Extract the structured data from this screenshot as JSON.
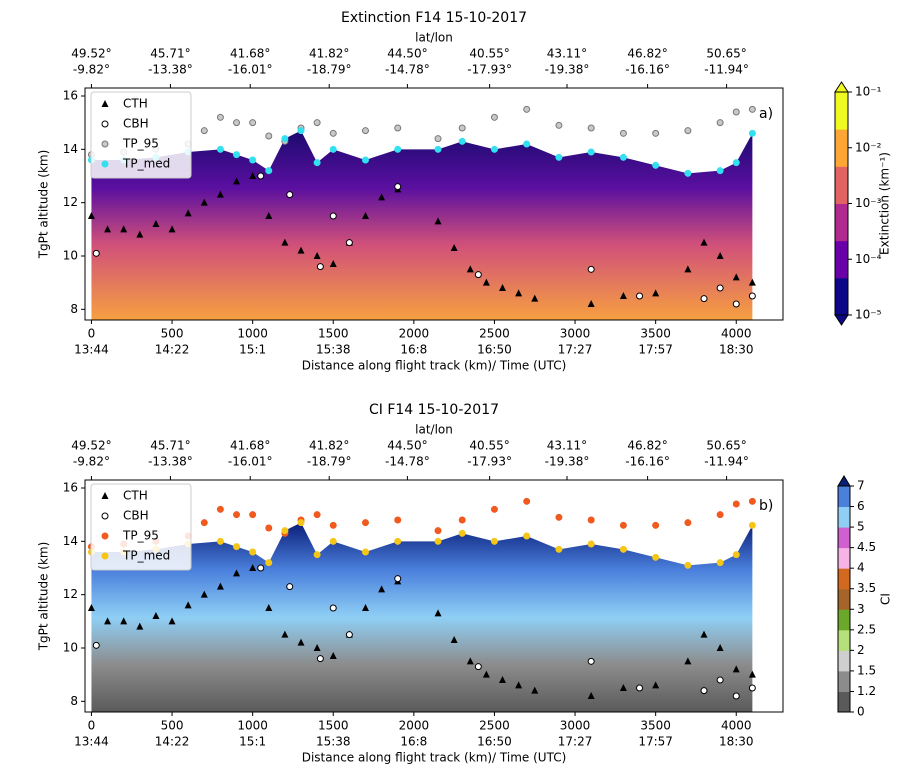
{
  "chart_data": [
    {
      "type": "curtain",
      "title": "Extinction F14  15-10-2017",
      "top_label": "lat/lon",
      "xlabel": "Distance along flight track (km)/ Time (UTC)",
      "ylabel": "TgPt altitude (km)",
      "panel_label": "a)",
      "xlim": [
        -40,
        4290
      ],
      "ylim": [
        7.6,
        16.3
      ],
      "xticks": [
        0,
        500,
        1000,
        1500,
        2000,
        2500,
        3000,
        3500,
        4000
      ],
      "xtick_times": [
        "13:44",
        "14:22",
        "15:1",
        "15:38",
        "16:8",
        "16:50",
        "17:27",
        "17:57",
        "18:30"
      ],
      "yticks": [
        8,
        10,
        12,
        14,
        16
      ],
      "top_xticks": [
        0,
        490,
        985,
        1475,
        1960,
        2470,
        2950,
        3450,
        3940
      ],
      "top_lat": [
        "49.52°",
        "45.71°",
        "41.68°",
        "41.82°",
        "44.50°",
        "40.55°",
        "43.11°",
        "46.82°",
        "50.65°"
      ],
      "top_lon": [
        "-9.82°",
        "-13.38°",
        "-16.01°",
        "-18.79°",
        "-14.78°",
        "-17.93°",
        "-19.38°",
        "-16.16°",
        "-11.94°"
      ],
      "legend": "upper left",
      "series": [
        {
          "name": "CTH",
          "marker": "triangle",
          "color": "#000000",
          "edgecolor": "#000000",
          "x": [
            0,
            100,
            200,
            300,
            400,
            500,
            600,
            700,
            800,
            900,
            1000,
            1100,
            1200,
            1300,
            1400,
            1500,
            1600,
            1700,
            1800,
            1900,
            2150,
            2250,
            2350,
            2450,
            2550,
            2650,
            2750,
            3100,
            3300,
            3500,
            3700,
            3800,
            3900,
            4000,
            4100
          ],
          "values": [
            11.5,
            11.0,
            11.0,
            10.8,
            11.2,
            11.0,
            11.6,
            12.0,
            12.3,
            12.8,
            13.0,
            11.5,
            10.5,
            10.2,
            10.0,
            9.7,
            10.5,
            11.5,
            12.2,
            12.5,
            11.3,
            10.3,
            9.5,
            9.0,
            8.8,
            8.6,
            8.4,
            8.2,
            8.5,
            8.6,
            9.5,
            10.5,
            10.0,
            9.2,
            9.0
          ]
        },
        {
          "name": "CBH",
          "marker": "circle",
          "color": "#ffffff",
          "edgecolor": "#000000",
          "x": [
            30,
            1050,
            1230,
            1420,
            1500,
            1600,
            1900,
            2400,
            3100,
            3400,
            3800,
            3900,
            4000,
            4100
          ],
          "values": [
            10.1,
            13.0,
            12.3,
            9.6,
            11.5,
            10.5,
            12.6,
            9.3,
            9.5,
            8.5,
            8.4,
            8.8,
            8.2,
            8.5
          ]
        },
        {
          "name": "TP_95",
          "marker": "circle",
          "color": "#c8c8c8",
          "edgecolor": "#777777",
          "x": [
            0,
            200,
            400,
            600,
            700,
            800,
            900,
            1000,
            1100,
            1200,
            1300,
            1400,
            1500,
            1700,
            1900,
            2150,
            2300,
            2500,
            2700,
            2900,
            3100,
            3300,
            3500,
            3700,
            3900,
            4000,
            4100
          ],
          "values": [
            13.8,
            13.9,
            14.0,
            14.2,
            14.7,
            15.2,
            15.0,
            15.0,
            14.5,
            14.3,
            14.8,
            15.0,
            14.6,
            14.7,
            14.8,
            14.4,
            14.8,
            15.2,
            15.5,
            14.9,
            14.8,
            14.6,
            14.6,
            14.7,
            15.0,
            15.4,
            15.5
          ]
        },
        {
          "name": "TP_med",
          "marker": "circle",
          "color": "#33e0f0",
          "edgecolor": "#33e0f0",
          "x": [
            0,
            200,
            400,
            600,
            800,
            900,
            1000,
            1100,
            1200,
            1300,
            1400,
            1500,
            1700,
            1900,
            2150,
            2300,
            2500,
            2700,
            2900,
            3100,
            3300,
            3500,
            3700,
            3900,
            4000,
            4100
          ],
          "values": [
            13.6,
            13.6,
            13.7,
            13.9,
            14.0,
            13.8,
            13.6,
            13.2,
            14.4,
            14.7,
            13.5,
            14.0,
            13.6,
            14.0,
            14.0,
            14.3,
            14.0,
            14.2,
            13.7,
            13.9,
            13.7,
            13.4,
            13.1,
            13.2,
            13.5,
            14.6
          ]
        }
      ],
      "colorbar": {
        "label": "Extinction (km⁻¹)",
        "scale": "log",
        "clim": [
          1e-05,
          0.1
        ],
        "colors": [
          "#0d0887",
          "#6a00a8",
          "#b12a90",
          "#e16462",
          "#fca636",
          "#f0f921"
        ],
        "ticks": [
          {
            "value": 1e-05,
            "label": "10⁻⁵"
          },
          {
            "value": 0.0001,
            "label": "10⁻⁴"
          },
          {
            "value": 0.001,
            "label": "10⁻³"
          },
          {
            "value": 0.01,
            "label": "10⁻²"
          },
          {
            "value": 0.1,
            "label": "10⁻¹"
          }
        ]
      }
    },
    {
      "type": "curtain",
      "title": "CI F14  15-10-2017",
      "top_label": "lat/lon",
      "xlabel": "Distance along flight track (km)/ Time (UTC)",
      "ylabel": "TgPt altitude (km)",
      "panel_label": "b)",
      "xlim": [
        -40,
        4290
      ],
      "ylim": [
        7.6,
        16.3
      ],
      "xticks": [
        0,
        500,
        1000,
        1500,
        2000,
        2500,
        3000,
        3500,
        4000
      ],
      "xtick_times": [
        "13:44",
        "14:22",
        "15:1",
        "15:38",
        "16:8",
        "16:50",
        "17:27",
        "17:57",
        "18:30"
      ],
      "yticks": [
        8,
        10,
        12,
        14,
        16
      ],
      "top_xticks": [
        0,
        490,
        985,
        1475,
        1960,
        2470,
        2950,
        3450,
        3940
      ],
      "top_lat": [
        "49.52°",
        "45.71°",
        "41.68°",
        "41.82°",
        "44.50°",
        "40.55°",
        "43.11°",
        "46.82°",
        "50.65°"
      ],
      "top_lon": [
        "-9.82°",
        "-13.38°",
        "-16.01°",
        "-18.79°",
        "-14.78°",
        "-17.93°",
        "-19.38°",
        "-16.16°",
        "-11.94°"
      ],
      "legend": "upper left",
      "series": [
        {
          "name": "CTH",
          "marker": "triangle",
          "color": "#000000",
          "edgecolor": "#000000",
          "x": [
            0,
            100,
            200,
            300,
            400,
            500,
            600,
            700,
            800,
            900,
            1000,
            1100,
            1200,
            1300,
            1400,
            1500,
            1600,
            1700,
            1800,
            1900,
            2150,
            2250,
            2350,
            2450,
            2550,
            2650,
            2750,
            3100,
            3300,
            3500,
            3700,
            3800,
            3900,
            4000,
            4100
          ],
          "values": [
            11.5,
            11.0,
            11.0,
            10.8,
            11.2,
            11.0,
            11.6,
            12.0,
            12.3,
            12.8,
            13.0,
            11.5,
            10.5,
            10.2,
            10.0,
            9.7,
            10.5,
            11.5,
            12.2,
            12.5,
            11.3,
            10.3,
            9.5,
            9.0,
            8.8,
            8.6,
            8.4,
            8.2,
            8.5,
            8.6,
            9.5,
            10.5,
            10.0,
            9.2,
            9.0
          ]
        },
        {
          "name": "CBH",
          "marker": "circle",
          "color": "#ffffff",
          "edgecolor": "#000000",
          "x": [
            30,
            1050,
            1230,
            1420,
            1500,
            1600,
            1900,
            2400,
            3100,
            3400,
            3800,
            3900,
            4000,
            4100
          ],
          "values": [
            10.1,
            13.0,
            12.3,
            9.6,
            11.5,
            10.5,
            12.6,
            9.3,
            9.5,
            8.5,
            8.4,
            8.8,
            8.2,
            8.5
          ]
        },
        {
          "name": "TP_95",
          "marker": "circle",
          "color": "#f05a1e",
          "edgecolor": "#f05a1e",
          "x": [
            0,
            200,
            400,
            600,
            700,
            800,
            900,
            1000,
            1100,
            1200,
            1300,
            1400,
            1500,
            1700,
            1900,
            2150,
            2300,
            2500,
            2700,
            2900,
            3100,
            3300,
            3500,
            3700,
            3900,
            4000,
            4100
          ],
          "values": [
            13.8,
            13.9,
            14.0,
            14.2,
            14.7,
            15.2,
            15.0,
            15.0,
            14.5,
            14.3,
            14.8,
            15.0,
            14.6,
            14.7,
            14.8,
            14.4,
            14.8,
            15.2,
            15.5,
            14.9,
            14.8,
            14.6,
            14.6,
            14.7,
            15.0,
            15.4,
            15.5
          ]
        },
        {
          "name": "TP_med",
          "marker": "circle",
          "color": "#f5c518",
          "edgecolor": "#f5c518",
          "x": [
            0,
            200,
            400,
            600,
            800,
            900,
            1000,
            1100,
            1200,
            1300,
            1400,
            1500,
            1700,
            1900,
            2150,
            2300,
            2500,
            2700,
            2900,
            3100,
            3300,
            3500,
            3700,
            3900,
            4000,
            4100
          ],
          "values": [
            13.6,
            13.6,
            13.7,
            13.9,
            14.0,
            13.8,
            13.6,
            13.2,
            14.4,
            14.7,
            13.5,
            14.0,
            13.6,
            14.0,
            14.0,
            14.3,
            14.0,
            14.2,
            13.7,
            13.9,
            13.7,
            13.4,
            13.1,
            13.2,
            13.5,
            14.6
          ]
        }
      ],
      "colorbar": {
        "label": "CI",
        "scale": "discrete",
        "boundaries": [
          0,
          1.2,
          1.5,
          2,
          2.5,
          3,
          3.5,
          4,
          4.5,
          5,
          6,
          7
        ],
        "colors": [
          "#5a5a5a",
          "#8c8c8c",
          "#cfcfcf",
          "#b5e07a",
          "#6aa82a",
          "#a5652a",
          "#d2691e",
          "#f6b4e6",
          "#d060d0",
          "#8fcff5",
          "#4a80dc"
        ],
        "extend_color": "#0a1e78"
      }
    }
  ]
}
